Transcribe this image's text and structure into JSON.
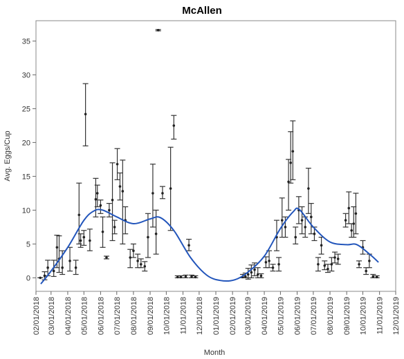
{
  "chart_data": {
    "type": "scatter",
    "title": "McAllen",
    "xlabel": "Month",
    "ylabel": "Avg. Eggs/Cup",
    "ylim": [
      -2,
      38
    ],
    "xlim": [
      "2018-02-01",
      "2019-12-01"
    ],
    "yticks": [
      0,
      5,
      10,
      15,
      20,
      25,
      30,
      35
    ],
    "xticks": [
      "02/01/2018",
      "03/01/2018",
      "04/01/2018",
      "05/01/2018",
      "06/01/2018",
      "07/01/2018",
      "08/01/2018",
      "09/01/2018",
      "10/01/2018",
      "11/01/2018",
      "12/01/2018",
      "01/01/2019",
      "02/01/2019",
      "03/01/2019",
      "04/01/2019",
      "05/01/2019",
      "06/01/2019",
      "07/01/2019",
      "08/01/2019",
      "09/01/2019",
      "10/01/2019",
      "11/01/2019",
      "12/01/2019"
    ],
    "grid": false,
    "points": [
      {
        "x": "2018-02-09",
        "y": 0.0,
        "lo": 0.0,
        "hi": 0.0
      },
      {
        "x": "2018-02-17",
        "y": 0.3,
        "lo": -0.3,
        "hi": 0.9
      },
      {
        "x": "2018-02-23",
        "y": 1.5,
        "lo": 0.3,
        "hi": 2.6
      },
      {
        "x": "2018-03-06",
        "y": 1.0,
        "lo": 0.2,
        "hi": 2.6
      },
      {
        "x": "2018-03-12",
        "y": 4.5,
        "lo": 1.5,
        "hi": 6.3
      },
      {
        "x": "2018-03-16",
        "y": 2.8,
        "lo": 0.8,
        "hi": 6.2
      },
      {
        "x": "2018-03-22",
        "y": 1.5,
        "lo": 0.5,
        "hi": 4.0
      },
      {
        "x": "2018-04-05",
        "y": 2.5,
        "lo": 1.0,
        "hi": 4.5
      },
      {
        "x": "2018-04-16",
        "y": 1.5,
        "lo": 0.5,
        "hi": 2.6
      },
      {
        "x": "2018-04-22",
        "y": 9.3,
        "lo": 5.0,
        "hi": 14.0
      },
      {
        "x": "2018-04-25",
        "y": 5.5,
        "lo": 4.5,
        "hi": 6.5
      },
      {
        "x": "2018-05-01",
        "y": 6.0,
        "lo": 4.8,
        "hi": 7.0
      },
      {
        "x": "2018-05-04",
        "y": 24.2,
        "lo": 19.5,
        "hi": 28.7
      },
      {
        "x": "2018-05-12",
        "y": 5.5,
        "lo": 4.0,
        "hi": 7.2
      },
      {
        "x": "2018-05-23",
        "y": 11.6,
        "lo": 9.0,
        "hi": 14.7
      },
      {
        "x": "2018-05-26",
        "y": 12.5,
        "lo": 10.5,
        "hi": 13.7
      },
      {
        "x": "2018-06-01",
        "y": 10.7,
        "lo": 9.5,
        "hi": 11.5
      },
      {
        "x": "2018-06-05",
        "y": 6.8,
        "lo": 4.5,
        "hi": 9.0
      },
      {
        "x": "2018-06-12",
        "y": 3.0,
        "lo": 2.8,
        "hi": 3.2
      },
      {
        "x": "2018-06-17",
        "y": 10.0,
        "lo": 9.0,
        "hi": 11.0
      },
      {
        "x": "2018-06-23",
        "y": 11.5,
        "lo": 5.5,
        "hi": 17.0
      },
      {
        "x": "2018-06-27",
        "y": 7.5,
        "lo": 6.5,
        "hi": 8.5
      },
      {
        "x": "2018-07-02",
        "y": 16.8,
        "lo": 14.5,
        "hi": 19.1
      },
      {
        "x": "2018-07-07",
        "y": 13.5,
        "lo": 11.5,
        "hi": 15.5
      },
      {
        "x": "2018-07-12",
        "y": 12.8,
        "lo": 5.0,
        "hi": 17.4
      },
      {
        "x": "2018-07-17",
        "y": 8.5,
        "lo": 6.5,
        "hi": 10.5
      },
      {
        "x": "2018-07-26",
        "y": 3.0,
        "lo": 1.5,
        "hi": 4.2
      },
      {
        "x": "2018-08-01",
        "y": 4.0,
        "lo": 3.0,
        "hi": 5.0
      },
      {
        "x": "2018-08-09",
        "y": 2.5,
        "lo": 1.5,
        "hi": 3.5
      },
      {
        "x": "2018-08-15",
        "y": 2.0,
        "lo": 1.5,
        "hi": 2.8
      },
      {
        "x": "2018-08-22",
        "y": 1.7,
        "lo": 1.0,
        "hi": 2.4
      },
      {
        "x": "2018-08-28",
        "y": 6.0,
        "lo": 3.0,
        "hi": 9.5
      },
      {
        "x": "2018-09-06",
        "y": 12.5,
        "lo": 7.5,
        "hi": 16.8
      },
      {
        "x": "2018-09-12",
        "y": 6.5,
        "lo": 3.5,
        "hi": 10.0
      },
      {
        "x": "2018-09-16",
        "y": 36.6,
        "lo": 36.5,
        "hi": 36.7
      },
      {
        "x": "2018-09-24",
        "y": 12.5,
        "lo": 11.7,
        "hi": 13.5
      },
      {
        "x": "2018-10-09",
        "y": 13.2,
        "lo": 7.0,
        "hi": 19.3
      },
      {
        "x": "2018-10-15",
        "y": 22.5,
        "lo": 20.5,
        "hi": 24.0
      },
      {
        "x": "2018-10-22",
        "y": 0.1,
        "lo": 0.0,
        "hi": 0.3
      },
      {
        "x": "2018-10-28",
        "y": 0.1,
        "lo": 0.0,
        "hi": 0.3
      },
      {
        "x": "2018-11-06",
        "y": 0.2,
        "lo": 0.0,
        "hi": 0.4
      },
      {
        "x": "2018-11-12",
        "y": 4.8,
        "lo": 4.0,
        "hi": 5.7
      },
      {
        "x": "2018-11-17",
        "y": 0.2,
        "lo": 0.0,
        "hi": 0.4
      },
      {
        "x": "2018-11-24",
        "y": 0.1,
        "lo": 0.0,
        "hi": 0.3
      },
      {
        "x": "2019-02-20",
        "y": 0.1,
        "lo": 0.0,
        "hi": 0.5
      },
      {
        "x": "2019-02-25",
        "y": 0.2,
        "lo": 0.0,
        "hi": 0.7
      },
      {
        "x": "2019-03-02",
        "y": 0.5,
        "lo": -0.2,
        "hi": 1.4
      },
      {
        "x": "2019-03-08",
        "y": 0.8,
        "lo": 0.0,
        "hi": 1.9
      },
      {
        "x": "2019-03-14",
        "y": 1.2,
        "lo": 0.3,
        "hi": 2.2
      },
      {
        "x": "2019-03-20",
        "y": 0.5,
        "lo": 0.0,
        "hi": 1.5
      },
      {
        "x": "2019-03-26",
        "y": 0.3,
        "lo": 0.0,
        "hi": 0.6
      },
      {
        "x": "2019-04-04",
        "y": 2.3,
        "lo": 1.5,
        "hi": 3.1
      },
      {
        "x": "2019-04-10",
        "y": 2.5,
        "lo": 1.5,
        "hi": 4.0
      },
      {
        "x": "2019-04-17",
        "y": 1.5,
        "lo": 1.0,
        "hi": 2.0
      },
      {
        "x": "2019-04-24",
        "y": 6.0,
        "lo": 4.0,
        "hi": 8.5
      },
      {
        "x": "2019-04-28",
        "y": 2.0,
        "lo": 1.0,
        "hi": 3.0
      },
      {
        "x": "2019-05-04",
        "y": 8.5,
        "lo": 6.0,
        "hi": 11.8
      },
      {
        "x": "2019-05-10",
        "y": 7.5,
        "lo": 6.0,
        "hi": 9.0
      },
      {
        "x": "2019-05-16",
        "y": 14.2,
        "lo": 10.0,
        "hi": 17.5
      },
      {
        "x": "2019-05-20",
        "y": 17.0,
        "lo": 14.0,
        "hi": 21.6
      },
      {
        "x": "2019-05-24",
        "y": 18.7,
        "lo": 14.5,
        "hi": 23.2
      },
      {
        "x": "2019-05-29",
        "y": 6.0,
        "lo": 5.0,
        "hi": 7.5
      },
      {
        "x": "2019-06-04",
        "y": 10.0,
        "lo": 8.0,
        "hi": 12.0
      },
      {
        "x": "2019-06-10",
        "y": 8.5,
        "lo": 6.5,
        "hi": 10.5
      },
      {
        "x": "2019-06-16",
        "y": 7.5,
        "lo": 6.0,
        "hi": 9.0
      },
      {
        "x": "2019-06-22",
        "y": 13.2,
        "lo": 9.5,
        "hi": 16.2
      },
      {
        "x": "2019-06-27",
        "y": 9.0,
        "lo": 6.5,
        "hi": 11.0
      },
      {
        "x": "2019-07-03",
        "y": 6.5,
        "lo": 5.5,
        "hi": 7.5
      },
      {
        "x": "2019-07-10",
        "y": 2.0,
        "lo": 1.0,
        "hi": 3.0
      },
      {
        "x": "2019-07-16",
        "y": 4.8,
        "lo": 3.5,
        "hi": 6.0
      },
      {
        "x": "2019-07-22",
        "y": 1.8,
        "lo": 1.2,
        "hi": 2.5
      },
      {
        "x": "2019-07-28",
        "y": 1.3,
        "lo": 0.8,
        "hi": 2.0
      },
      {
        "x": "2019-08-04",
        "y": 2.0,
        "lo": 1.0,
        "hi": 3.0
      },
      {
        "x": "2019-08-10",
        "y": 3.0,
        "lo": 2.2,
        "hi": 3.8
      },
      {
        "x": "2019-08-16",
        "y": 2.8,
        "lo": 2.0,
        "hi": 3.5
      },
      {
        "x": "2019-08-30",
        "y": 8.5,
        "lo": 7.5,
        "hi": 9.5
      },
      {
        "x": "2019-09-05",
        "y": 10.3,
        "lo": 8.0,
        "hi": 12.7
      },
      {
        "x": "2019-09-10",
        "y": 7.0,
        "lo": 6.0,
        "hi": 8.0
      },
      {
        "x": "2019-09-14",
        "y": 8.0,
        "lo": 6.0,
        "hi": 10.5
      },
      {
        "x": "2019-09-18",
        "y": 9.5,
        "lo": 6.5,
        "hi": 12.5
      },
      {
        "x": "2019-09-24",
        "y": 2.0,
        "lo": 1.5,
        "hi": 2.5
      },
      {
        "x": "2019-10-01",
        "y": 4.5,
        "lo": 3.5,
        "hi": 5.5
      },
      {
        "x": "2019-10-07",
        "y": 1.0,
        "lo": 0.5,
        "hi": 1.5
      },
      {
        "x": "2019-10-13",
        "y": 2.5,
        "lo": 1.5,
        "hi": 3.5
      },
      {
        "x": "2019-10-20",
        "y": 0.2,
        "lo": 0.0,
        "hi": 0.5
      },
      {
        "x": "2019-10-27",
        "y": 0.1,
        "lo": 0.0,
        "hi": 0.3
      }
    ],
    "fit_curve": {
      "color": "#2255bb",
      "points": [
        {
          "x": "2018-02-10",
          "y": -0.9
        },
        {
          "x": "2018-03-01",
          "y": 1.0
        },
        {
          "x": "2018-04-01",
          "y": 4.5
        },
        {
          "x": "2018-05-01",
          "y": 8.5
        },
        {
          "x": "2018-05-20",
          "y": 9.9
        },
        {
          "x": "2018-06-05",
          "y": 10.0
        },
        {
          "x": "2018-07-01",
          "y": 9.0
        },
        {
          "x": "2018-08-01",
          "y": 8.0
        },
        {
          "x": "2018-09-01",
          "y": 8.7
        },
        {
          "x": "2018-09-20",
          "y": 8.9
        },
        {
          "x": "2018-10-15",
          "y": 7.0
        },
        {
          "x": "2018-11-15",
          "y": 3.0
        },
        {
          "x": "2018-12-15",
          "y": 0.4
        },
        {
          "x": "2019-01-10",
          "y": -0.4
        },
        {
          "x": "2019-02-05",
          "y": -0.3
        },
        {
          "x": "2019-03-01",
          "y": 0.8
        },
        {
          "x": "2019-04-01",
          "y": 3.2
        },
        {
          "x": "2019-05-01",
          "y": 7.3
        },
        {
          "x": "2019-05-25",
          "y": 9.8
        },
        {
          "x": "2019-06-05",
          "y": 10.1
        },
        {
          "x": "2019-07-01",
          "y": 7.5
        },
        {
          "x": "2019-08-01",
          "y": 5.3
        },
        {
          "x": "2019-09-01",
          "y": 4.9
        },
        {
          "x": "2019-09-20",
          "y": 4.9
        },
        {
          "x": "2019-10-15",
          "y": 3.4
        },
        {
          "x": "2019-10-30",
          "y": 2.3
        }
      ]
    }
  }
}
